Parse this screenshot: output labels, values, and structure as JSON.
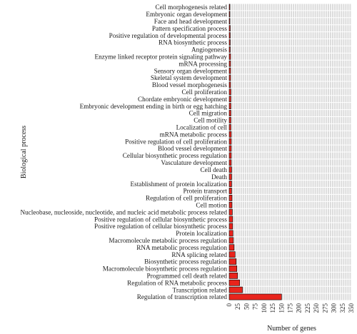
{
  "chart_data": {
    "type": "bar",
    "orientation": "horizontal",
    "xlabel": "Number of genes",
    "ylabel": "Biological process",
    "xlim": [
      0,
      350
    ],
    "xticks": [
      "0",
      "25",
      "50",
      "75",
      "100",
      "125",
      "150",
      "175",
      "200",
      "225",
      "250",
      "275",
      "300",
      "325",
      "350"
    ],
    "grid": true,
    "bar_color": "#e8241c",
    "grid_background": "#dcdcdc",
    "categories": [
      "Cell morphogenesis related",
      "Embryonic organ development",
      "Face and head development",
      "Pattern specification process",
      "Positive regulation of developmental process",
      "RNA biosynthetic process",
      "Angiogenesis",
      "Enzyme linked receptor protein signaling pathway",
      "mRNA processing",
      "Sensory organ development",
      "Skeletal system development",
      "Blood vessel morphogenesis",
      "Cell proliferation",
      "Chordate embryonic development",
      "Embryonic development ending in birth or egg hatching",
      "Cell migration",
      "Cell motility",
      "Localization of cell",
      "mRNA metabolic process",
      "Positive regulation of cell proliferation",
      "Blood vessel development",
      "Cellular biosynthetic process regulation",
      "Vasculature development",
      "Cell death",
      "Death",
      "Establishment of protein localization",
      "Protein transport",
      "Regulation of cell proliferation",
      "Cell motion",
      "Nucleobase, nucleoside, nucleotide, and nucleic acid metabolic process related",
      "Positive regulation of cellular biosynthetic process",
      "Positive regulation of cellular biosynthetic process",
      "Protein localization",
      "Macromolecule metabolic process regulation",
      "RNA metabolic process regulation",
      "RNA splicing related",
      "Biosynthetic process regulation",
      "Macromolecule biosynthetic process regulation",
      "Programmed cell death related",
      "Regulation of RNA metabolic process",
      "Transcription related",
      "Regulation of transcription related"
    ],
    "values": [
      2,
      2,
      2,
      3,
      3,
      3,
      3,
      4,
      4,
      4,
      4,
      4,
      5,
      5,
      5,
      5,
      5,
      5,
      6,
      6,
      6,
      6,
      6,
      7,
      7,
      7,
      7,
      8,
      8,
      9,
      10,
      10,
      11,
      12,
      14,
      17,
      20,
      22,
      24,
      30,
      38,
      150
    ]
  }
}
